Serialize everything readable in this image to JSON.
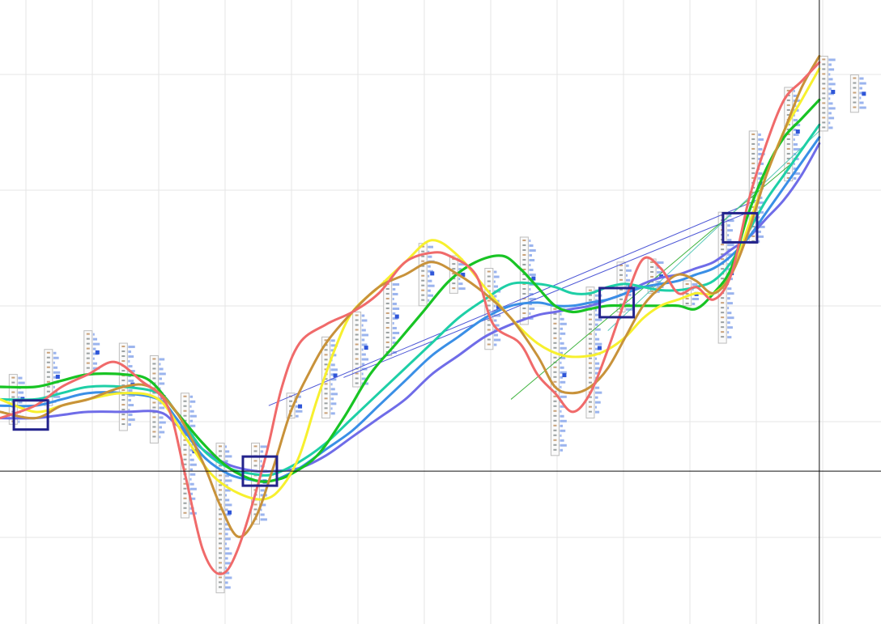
{
  "chart_data": {
    "type": "line",
    "title": "",
    "xlabel": "",
    "ylabel": "",
    "grid": true,
    "legend": "none",
    "xlim": [
      0,
      100
    ],
    "ylim": [
      0,
      100
    ],
    "crosshair": {
      "x": 93,
      "y": 24.5
    },
    "series": [
      {
        "color": "#f06a6a",
        "width": 3,
        "points": [
          [
            0,
            33
          ],
          [
            4,
            35
          ],
          [
            7,
            38
          ],
          [
            10,
            40
          ],
          [
            13,
            42
          ],
          [
            16,
            39
          ],
          [
            19,
            35
          ],
          [
            21,
            24
          ],
          [
            23,
            12
          ],
          [
            25,
            8
          ],
          [
            27,
            12
          ],
          [
            30,
            26
          ],
          [
            32,
            38
          ],
          [
            34,
            45
          ],
          [
            37,
            48
          ],
          [
            40,
            50
          ],
          [
            43,
            53
          ],
          [
            46,
            58
          ],
          [
            49,
            59.5
          ],
          [
            51,
            59
          ],
          [
            54,
            56
          ],
          [
            56,
            48
          ],
          [
            59,
            45
          ],
          [
            61,
            40
          ],
          [
            63,
            37
          ],
          [
            65,
            34
          ],
          [
            67,
            37
          ],
          [
            69,
            44
          ],
          [
            71,
            52
          ],
          [
            73,
            58.5
          ],
          [
            75,
            57
          ],
          [
            77,
            53
          ],
          [
            79,
            54
          ],
          [
            81,
            52
          ],
          [
            83,
            56
          ],
          [
            85,
            68
          ],
          [
            87,
            77
          ],
          [
            89,
            84
          ],
          [
            91,
            87
          ],
          [
            93,
            90
          ]
        ]
      },
      {
        "color": "#c8923a",
        "width": 3,
        "points": [
          [
            0,
            34
          ],
          [
            4,
            33
          ],
          [
            7,
            35
          ],
          [
            10,
            36
          ],
          [
            14,
            38
          ],
          [
            17,
            38
          ],
          [
            20,
            34
          ],
          [
            23,
            26
          ],
          [
            25,
            19
          ],
          [
            27,
            14
          ],
          [
            29,
            17
          ],
          [
            31,
            25
          ],
          [
            33,
            34
          ],
          [
            35,
            40
          ],
          [
            37,
            45
          ],
          [
            40,
            50
          ],
          [
            43,
            54
          ],
          [
            46,
            56
          ],
          [
            49,
            58
          ],
          [
            52,
            56
          ],
          [
            55,
            53
          ],
          [
            58,
            49
          ],
          [
            61,
            43
          ],
          [
            63,
            38
          ],
          [
            65,
            37
          ],
          [
            67,
            38
          ],
          [
            69,
            41
          ],
          [
            71,
            46
          ],
          [
            73,
            51
          ],
          [
            75,
            54
          ],
          [
            77,
            56
          ],
          [
            79,
            55
          ],
          [
            81,
            53
          ],
          [
            83,
            56
          ],
          [
            85,
            63
          ],
          [
            87,
            72
          ],
          [
            89,
            79
          ],
          [
            91,
            86
          ],
          [
            93,
            91
          ]
        ]
      },
      {
        "color": "#f7f02e",
        "width": 3,
        "points": [
          [
            0,
            36
          ],
          [
            4,
            34
          ],
          [
            7,
            35
          ],
          [
            10,
            36
          ],
          [
            14,
            37
          ],
          [
            18,
            36
          ],
          [
            21,
            30
          ],
          [
            24,
            24
          ],
          [
            27,
            21
          ],
          [
            30,
            20
          ],
          [
            32,
            22
          ],
          [
            34,
            27
          ],
          [
            36,
            36
          ],
          [
            38,
            44
          ],
          [
            40,
            50
          ],
          [
            43,
            54
          ],
          [
            46,
            58
          ],
          [
            49,
            61.5
          ],
          [
            52,
            59
          ],
          [
            55,
            54
          ],
          [
            58,
            49
          ],
          [
            61,
            45
          ],
          [
            64,
            43
          ],
          [
            67,
            43
          ],
          [
            69,
            44
          ],
          [
            71,
            46
          ],
          [
            73,
            49
          ],
          [
            75,
            51
          ],
          [
            77,
            52
          ],
          [
            79,
            53
          ],
          [
            81,
            53
          ],
          [
            83,
            56
          ],
          [
            85,
            64
          ],
          [
            87,
            72
          ],
          [
            89,
            79
          ],
          [
            91,
            84
          ],
          [
            93,
            89
          ]
        ]
      },
      {
        "color": "#18c424",
        "width": 3.2,
        "points": [
          [
            0,
            38
          ],
          [
            4,
            38
          ],
          [
            7,
            39
          ],
          [
            10,
            40
          ],
          [
            14,
            40
          ],
          [
            17,
            39
          ],
          [
            20,
            34
          ],
          [
            23,
            29
          ],
          [
            26,
            25
          ],
          [
            29,
            23
          ],
          [
            31,
            23
          ],
          [
            33,
            24
          ],
          [
            36,
            27
          ],
          [
            39,
            33
          ],
          [
            42,
            40
          ],
          [
            45,
            45
          ],
          [
            48,
            50
          ],
          [
            51,
            55
          ],
          [
            54,
            58
          ],
          [
            57,
            59
          ],
          [
            59,
            57
          ],
          [
            61,
            54
          ],
          [
            63,
            51
          ],
          [
            65,
            50
          ],
          [
            67,
            50.5
          ],
          [
            69,
            51
          ],
          [
            71,
            51
          ],
          [
            73,
            51
          ],
          [
            75,
            51
          ],
          [
            77,
            51
          ],
          [
            79,
            50.5
          ],
          [
            81,
            53
          ],
          [
            83,
            57
          ],
          [
            85,
            66
          ],
          [
            87,
            73
          ],
          [
            89,
            78
          ],
          [
            91,
            81
          ],
          [
            93,
            84
          ]
        ]
      },
      {
        "color": "#1ecfa6",
        "width": 3,
        "points": [
          [
            0,
            36
          ],
          [
            4,
            36
          ],
          [
            7,
            37
          ],
          [
            10,
            38
          ],
          [
            14,
            38
          ],
          [
            18,
            37
          ],
          [
            20,
            34
          ],
          [
            23,
            28
          ],
          [
            26,
            25
          ],
          [
            29,
            24
          ],
          [
            31,
            24
          ],
          [
            34,
            26
          ],
          [
            37,
            29
          ],
          [
            40,
            33
          ],
          [
            43,
            37
          ],
          [
            46,
            41
          ],
          [
            49,
            45
          ],
          [
            52,
            49
          ],
          [
            55,
            52
          ],
          [
            58,
            54.5
          ],
          [
            61,
            54.5
          ],
          [
            63,
            54
          ],
          [
            65,
            53
          ],
          [
            67,
            53
          ],
          [
            69,
            54
          ],
          [
            71,
            54.5
          ],
          [
            73,
            54
          ],
          [
            75,
            53.5
          ],
          [
            77,
            53.5
          ],
          [
            79,
            54
          ],
          [
            81,
            55
          ],
          [
            83,
            58
          ],
          [
            85,
            63
          ],
          [
            87,
            68
          ],
          [
            89,
            72
          ],
          [
            91,
            76
          ],
          [
            93,
            80
          ]
        ]
      },
      {
        "color": "#3a8fe6",
        "width": 3,
        "points": [
          [
            0,
            35
          ],
          [
            4,
            35
          ],
          [
            7,
            36
          ],
          [
            10,
            37
          ],
          [
            14,
            37
          ],
          [
            18,
            36
          ],
          [
            20,
            33
          ],
          [
            23,
            27
          ],
          [
            26,
            24
          ],
          [
            29,
            23
          ],
          [
            31,
            23
          ],
          [
            34,
            25
          ],
          [
            37,
            28
          ],
          [
            40,
            31
          ],
          [
            43,
            35
          ],
          [
            46,
            39
          ],
          [
            49,
            43
          ],
          [
            52,
            46
          ],
          [
            55,
            49
          ],
          [
            58,
            51
          ],
          [
            61,
            51.5
          ],
          [
            63,
            51
          ],
          [
            65,
            51
          ],
          [
            67,
            51.5
          ],
          [
            69,
            52
          ],
          [
            71,
            53
          ],
          [
            73,
            54
          ],
          [
            75,
            54.5
          ],
          [
            77,
            55
          ],
          [
            79,
            56
          ],
          [
            81,
            57
          ],
          [
            83,
            59
          ],
          [
            85,
            62
          ],
          [
            87,
            66
          ],
          [
            89,
            70
          ],
          [
            91,
            74
          ],
          [
            93,
            78
          ]
        ]
      },
      {
        "color": "#6f6ce8",
        "width": 3,
        "points": [
          [
            0,
            33
          ],
          [
            4,
            33
          ],
          [
            7,
            33.5
          ],
          [
            10,
            34
          ],
          [
            14,
            34
          ],
          [
            18,
            34
          ],
          [
            20,
            32
          ],
          [
            23,
            28
          ],
          [
            26,
            25.5
          ],
          [
            29,
            24.5
          ],
          [
            31,
            24.5
          ],
          [
            34,
            25
          ],
          [
            37,
            27
          ],
          [
            40,
            30
          ],
          [
            43,
            33
          ],
          [
            46,
            36
          ],
          [
            49,
            40
          ],
          [
            52,
            43
          ],
          [
            55,
            46
          ],
          [
            58,
            48
          ],
          [
            61,
            49.5
          ],
          [
            63,
            50
          ],
          [
            65,
            50.5
          ],
          [
            67,
            51
          ],
          [
            69,
            52
          ],
          [
            71,
            53
          ],
          [
            73,
            54.5
          ],
          [
            75,
            55.5
          ],
          [
            77,
            56
          ],
          [
            79,
            57
          ],
          [
            81,
            58
          ],
          [
            83,
            60
          ],
          [
            85,
            62
          ],
          [
            87,
            65
          ],
          [
            89,
            68
          ],
          [
            91,
            72
          ],
          [
            93,
            77
          ]
        ]
      }
    ],
    "trendlines": [
      {
        "color": "#4d57d6",
        "from": [
          30.5,
          35
        ],
        "to": [
          86,
          68
        ]
      },
      {
        "color": "#4d57d6",
        "from": [
          39,
          39.5
        ],
        "to": [
          85,
          66
        ]
      },
      {
        "color": "#3ab23a",
        "from": [
          58,
          36
        ],
        "to": [
          90,
          74
        ]
      },
      {
        "color": "#58c8b8",
        "from": [
          69,
          47
        ],
        "to": [
          93,
          79
        ]
      }
    ],
    "highlight_boxes": [
      {
        "center": [
          3.5,
          33.5
        ]
      },
      {
        "center": [
          29.5,
          24.5
        ]
      },
      {
        "center": [
          70,
          51.5
        ]
      },
      {
        "center": [
          84,
          63.5
        ]
      }
    ],
    "profiles": [
      {
        "x": 1.5,
        "ymin": 32,
        "ymax": 40
      },
      {
        "x": 5.5,
        "ymin": 35,
        "ymax": 44
      },
      {
        "x": 10,
        "ymin": 40,
        "ymax": 47
      },
      {
        "x": 14,
        "ymin": 31,
        "ymax": 45
      },
      {
        "x": 17.5,
        "ymin": 29,
        "ymax": 43
      },
      {
        "x": 21,
        "ymin": 17,
        "ymax": 37
      },
      {
        "x": 25,
        "ymin": 5,
        "ymax": 29
      },
      {
        "x": 29,
        "ymin": 16,
        "ymax": 29
      },
      {
        "x": 33,
        "ymin": 33,
        "ymax": 37
      },
      {
        "x": 37,
        "ymin": 33,
        "ymax": 46
      },
      {
        "x": 40.5,
        "ymin": 38,
        "ymax": 50
      },
      {
        "x": 44,
        "ymin": 43,
        "ymax": 55
      },
      {
        "x": 48,
        "ymin": 51,
        "ymax": 61
      },
      {
        "x": 51.5,
        "ymin": 53,
        "ymax": 59
      },
      {
        "x": 55.5,
        "ymin": 44,
        "ymax": 57
      },
      {
        "x": 59.5,
        "ymin": 48,
        "ymax": 62
      },
      {
        "x": 63,
        "ymin": 27,
        "ymax": 51
      },
      {
        "x": 67,
        "ymin": 33,
        "ymax": 54
      },
      {
        "x": 70.5,
        "ymin": 50,
        "ymax": 58
      },
      {
        "x": 74,
        "ymin": 53,
        "ymax": 58.5
      },
      {
        "x": 78,
        "ymin": 51,
        "ymax": 55
      },
      {
        "x": 82,
        "ymin": 45,
        "ymax": 66
      },
      {
        "x": 85.5,
        "ymin": 61,
        "ymax": 79
      },
      {
        "x": 89.5,
        "ymin": 71,
        "ymax": 86
      },
      {
        "x": 93.5,
        "ymin": 79,
        "ymax": 91
      },
      {
        "x": 97,
        "ymin": 82,
        "ymax": 88
      }
    ]
  }
}
